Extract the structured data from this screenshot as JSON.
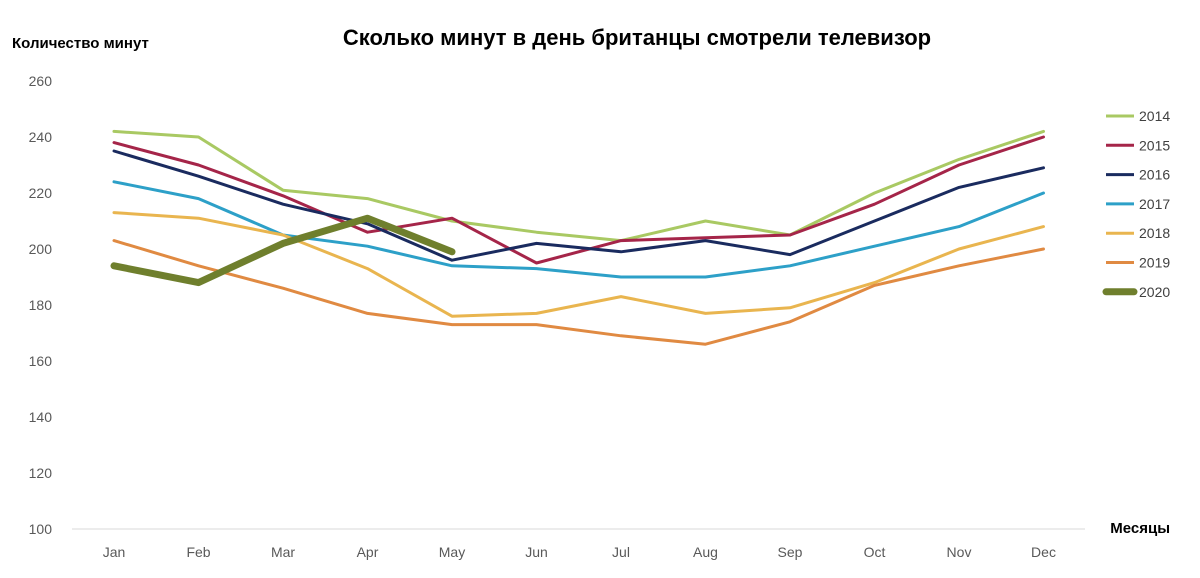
{
  "chart_data": {
    "type": "line",
    "title": "Сколько минут в день британцы смотрели телевизор",
    "ylabel": "Количество минут",
    "xlabel": "Месяцы",
    "ylim": [
      100,
      260
    ],
    "yticks": [
      100,
      120,
      140,
      160,
      180,
      200,
      220,
      240,
      260
    ],
    "grid": false,
    "legend_position": "right",
    "categories": [
      "Jan",
      "Feb",
      "Mar",
      "Apr",
      "May",
      "Jun",
      "Jul",
      "Aug",
      "Sep",
      "Oct",
      "Nov",
      "Dec"
    ],
    "series": [
      {
        "name": "2014",
        "color": "#a9c963",
        "emphasis": false,
        "values": [
          242,
          240,
          221,
          218,
          210,
          206,
          203,
          210,
          205,
          220,
          232,
          242
        ]
      },
      {
        "name": "2015",
        "color": "#a52549",
        "emphasis": false,
        "values": [
          238,
          230,
          219,
          206,
          211,
          195,
          203,
          204,
          205,
          216,
          230,
          240
        ]
      },
      {
        "name": "2016",
        "color": "#1a2b5f",
        "emphasis": false,
        "values": [
          235,
          226,
          216,
          209,
          196,
          202,
          199,
          203,
          198,
          210,
          222,
          229
        ]
      },
      {
        "name": "2017",
        "color": "#2da0c8",
        "emphasis": false,
        "values": [
          224,
          218,
          205,
          201,
          194,
          193,
          190,
          190,
          194,
          201,
          208,
          220
        ]
      },
      {
        "name": "2018",
        "color": "#e9b54f",
        "emphasis": false,
        "values": [
          213,
          211,
          205,
          193,
          176,
          177,
          183,
          177,
          179,
          188,
          200,
          208
        ]
      },
      {
        "name": "2019",
        "color": "#e08a42",
        "emphasis": false,
        "values": [
          203,
          194,
          186,
          177,
          173,
          173,
          169,
          166,
          174,
          187,
          194,
          200
        ]
      },
      {
        "name": "2020",
        "color": "#6f7f2d",
        "emphasis": true,
        "values": [
          194,
          188,
          202,
          211,
          199,
          null,
          null,
          null,
          null,
          null,
          null,
          null
        ]
      }
    ]
  }
}
